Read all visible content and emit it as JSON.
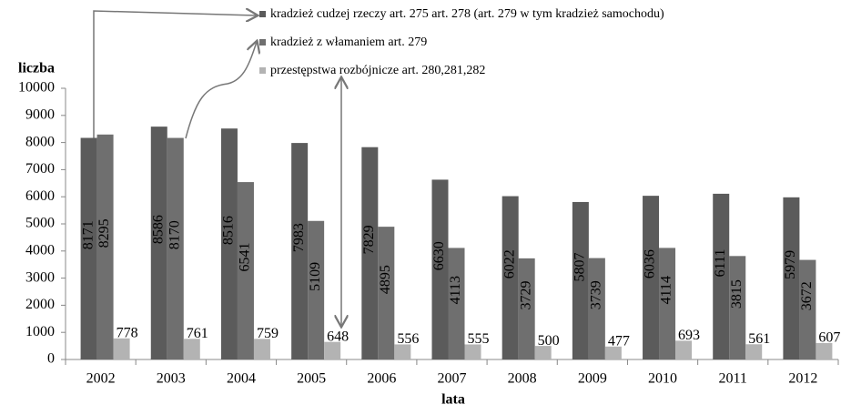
{
  "chart_data": {
    "type": "bar",
    "y_label": "liczba",
    "x_label": "lata",
    "categories": [
      "2002",
      "2003",
      "2004",
      "2005",
      "2006",
      "2007",
      "2008",
      "2009",
      "2010",
      "2011",
      "2012"
    ],
    "series": [
      {
        "name": "kradzież cudzej rzeczy art. 275 art. 278 (art. 279 w tym kradzież samochodu)",
        "color": "#5b5b5b",
        "values": [
          8171,
          8586,
          8516,
          7983,
          7829,
          6630,
          6022,
          5807,
          6036,
          6111,
          5979
        ]
      },
      {
        "name": "kradzież z włamaniem art. 279",
        "color": "#6f6f6f",
        "values": [
          8295,
          8170,
          6541,
          5109,
          4895,
          4113,
          3729,
          3739,
          4114,
          3815,
          3672
        ]
      },
      {
        "name": "przestępstwa rozbójnicze art. 280,281,282",
        "color": "#b3b3b3",
        "values": [
          778,
          761,
          759,
          648,
          556,
          555,
          500,
          477,
          693,
          561,
          607
        ]
      }
    ],
    "ylim": [
      0,
      10000
    ],
    "yticks": [
      0,
      1000,
      2000,
      3000,
      4000,
      5000,
      6000,
      7000,
      8000,
      9000,
      10000
    ]
  }
}
